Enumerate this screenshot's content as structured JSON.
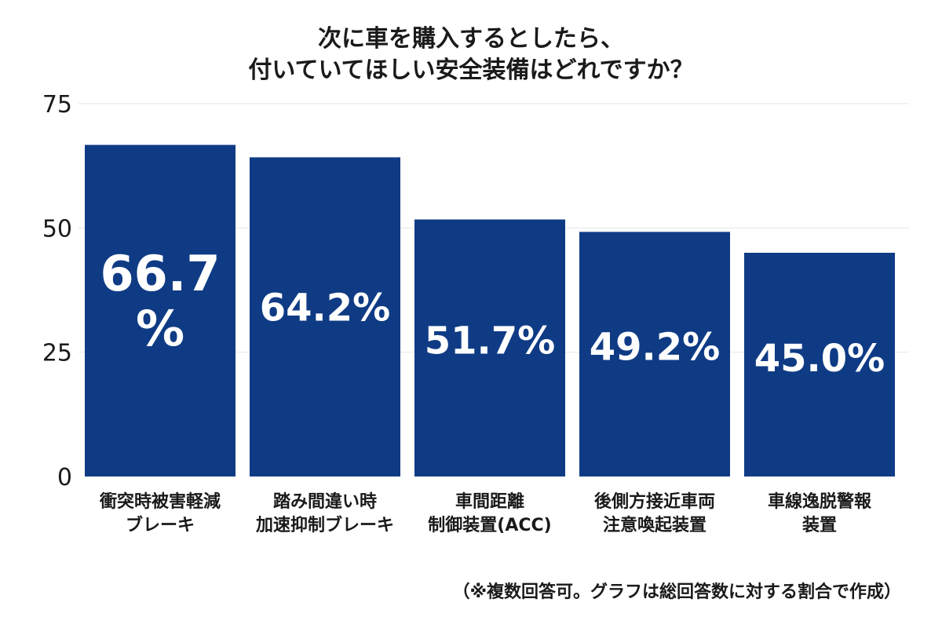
{
  "chart_data": {
    "type": "bar",
    "title_lines": [
      "次に車を購入するとしたら、",
      "付いていてほしい安全装備はどれですか？"
    ],
    "categories": [
      [
        "衝突時被害軽減",
        "ブレーキ"
      ],
      [
        "踏み間違い時",
        "加速抑制ブレーキ"
      ],
      [
        "車間距離",
        "制御装置(ACC)"
      ],
      [
        "後側方接近車両",
        "注意喚起装置"
      ],
      [
        "車線逸脱警報",
        "装置"
      ]
    ],
    "values": [
      66.7,
      64.2,
      51.7,
      49.2,
      45.0
    ],
    "data_labels": [
      [
        "66.7",
        "%"
      ],
      [
        "64.2%"
      ],
      [
        "51.7%"
      ],
      [
        "49.2%"
      ],
      [
        "45.0%"
      ]
    ],
    "y_ticks": [
      "0",
      "25",
      "50",
      "75"
    ],
    "ylim": [
      0,
      75
    ],
    "grid": true,
    "colors": {
      "bar": "#0f3b85",
      "label": "#ffffff",
      "grid": "#e6e6e6"
    }
  },
  "footnote": "（※複数回答可。グラフは総回答数に対する割合で作成）"
}
